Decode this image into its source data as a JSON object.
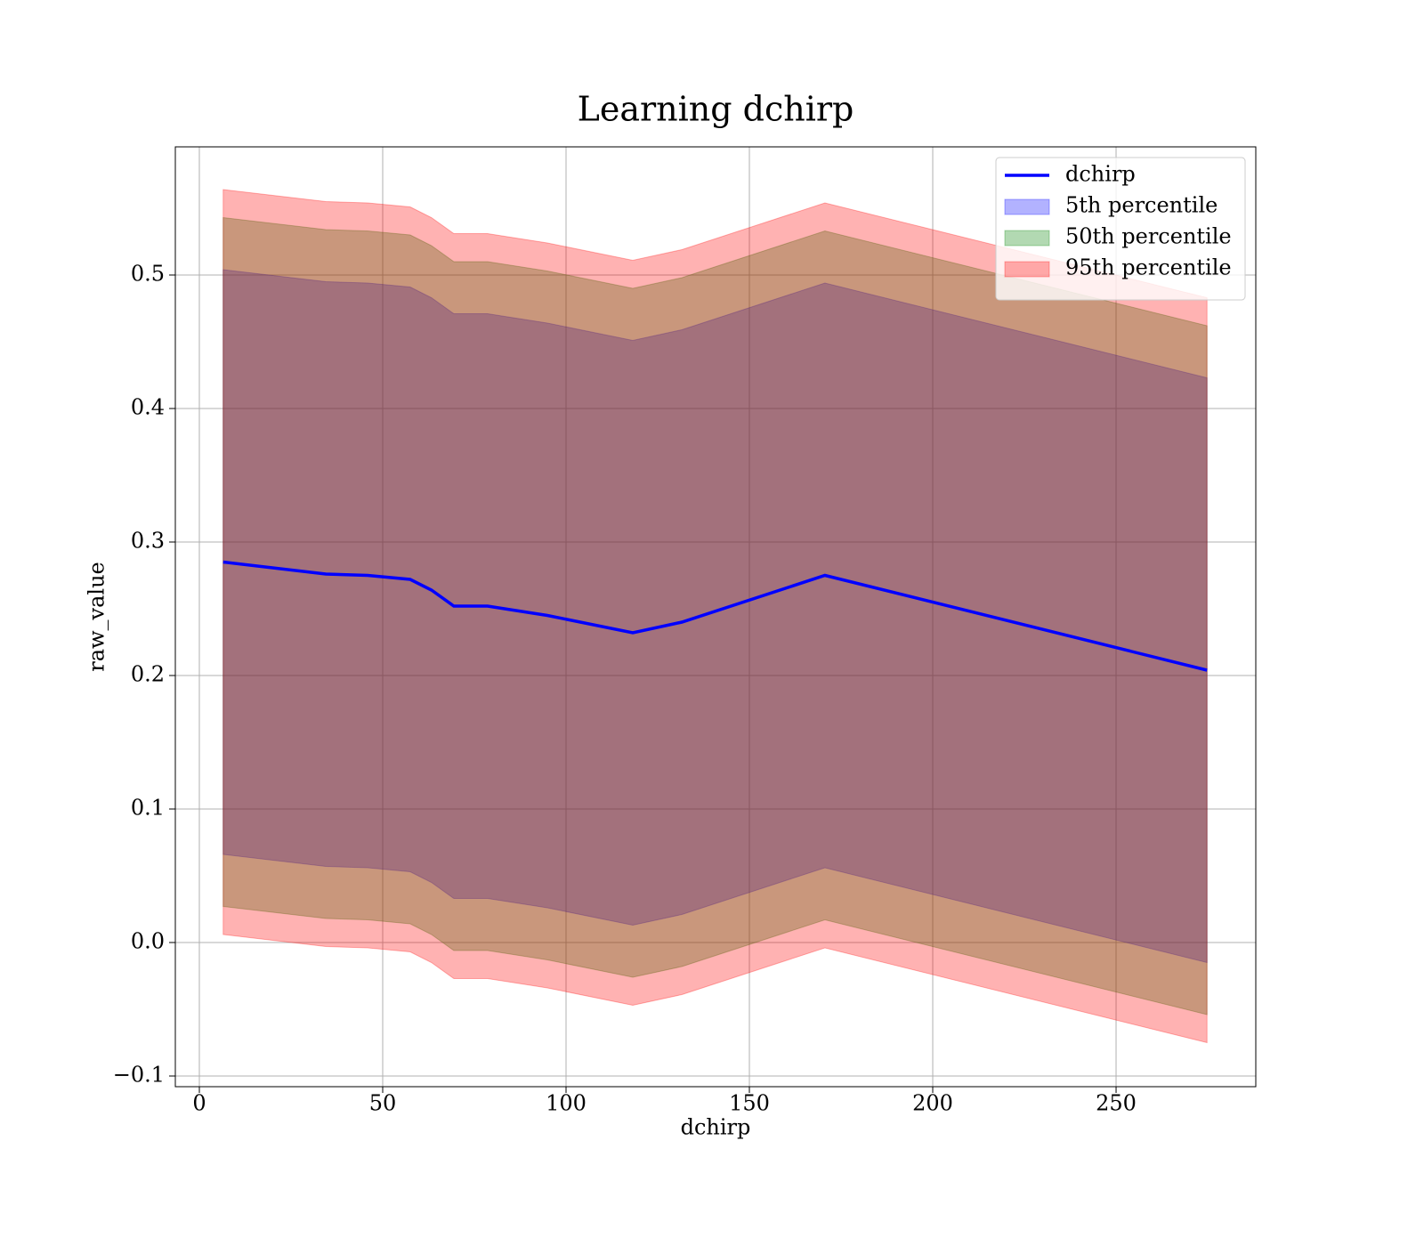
{
  "chart_data": {
    "type": "line",
    "title": "Learning dchirp",
    "x_label": "dchirp",
    "y_label": "raw_value",
    "x": [
      6.5,
      34.5,
      45.9,
      57.5,
      63.3,
      69.4,
      78.6,
      94.9,
      118.2,
      131.6,
      170.6,
      274.8
    ],
    "series": [
      {
        "name": "dchirp",
        "color": "#0000ff",
        "values": [
          0.285,
          0.276,
          0.275,
          0.272,
          0.264,
          0.252,
          0.252,
          0.245,
          0.232,
          0.24,
          0.275,
          0.204
        ]
      },
      {
        "name": "5th percentile",
        "color": "#0000ff",
        "lower": [
          0.066,
          0.057,
          0.056,
          0.053,
          0.045,
          0.033,
          0.033,
          0.026,
          0.013,
          0.021,
          0.056,
          -0.015
        ],
        "upper": [
          0.504,
          0.495,
          0.494,
          0.491,
          0.483,
          0.471,
          0.471,
          0.464,
          0.451,
          0.459,
          0.494,
          0.423
        ]
      },
      {
        "name": "50th percentile",
        "color": "#008000",
        "lower": [
          0.027,
          0.018,
          0.017,
          0.014,
          0.006,
          -0.006,
          -0.006,
          -0.013,
          -0.026,
          -0.018,
          0.017,
          -0.054
        ],
        "upper": [
          0.543,
          0.534,
          0.533,
          0.53,
          0.522,
          0.51,
          0.51,
          0.503,
          0.49,
          0.498,
          0.533,
          0.462
        ]
      },
      {
        "name": "95th percentile",
        "color": "#ff0000",
        "lower": [
          0.006,
          -0.003,
          -0.004,
          -0.007,
          -0.015,
          -0.027,
          -0.027,
          -0.034,
          -0.047,
          -0.039,
          -0.004,
          -0.075
        ],
        "upper": [
          0.564,
          0.555,
          0.554,
          0.551,
          0.543,
          0.531,
          0.531,
          0.524,
          0.511,
          0.519,
          0.554,
          0.483
        ]
      }
    ],
    "xlim": [
      -6.55,
      288.1
    ],
    "xticks": [
      0,
      50,
      100,
      150,
      200,
      250
    ],
    "ylim": [
      -0.108,
      0.596
    ],
    "yticks": [
      {
        "value": -0.1,
        "label": "−0.1"
      },
      {
        "value": 0,
        "label": "0.0"
      },
      0.1,
      0.2,
      0.3,
      0.4,
      0.5
    ],
    "grid": true,
    "legend": "upper right"
  }
}
